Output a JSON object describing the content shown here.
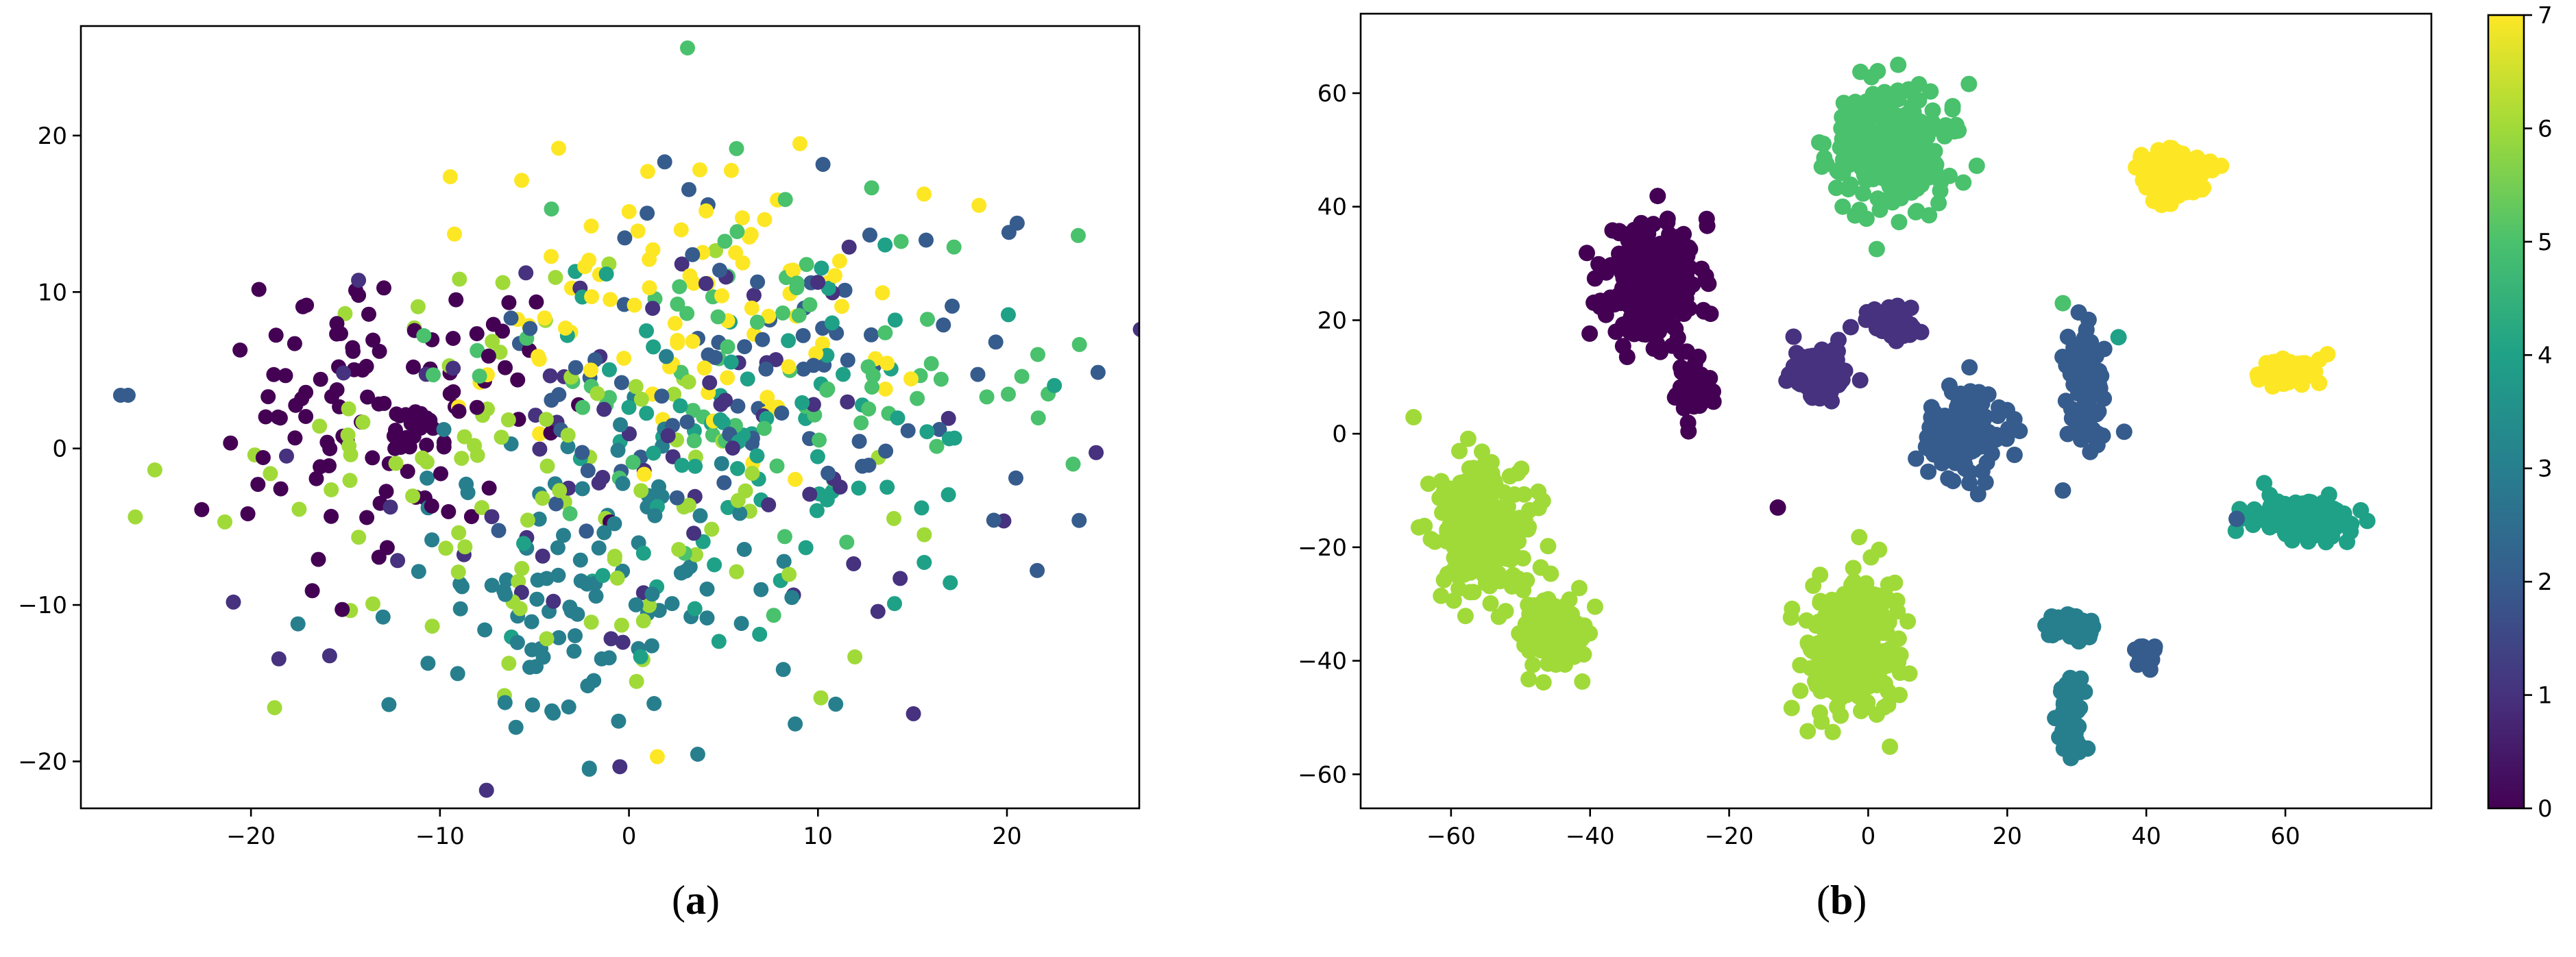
{
  "captions": {
    "a": "a",
    "b": "b"
  },
  "colors": {
    "viridis": [
      "#440154",
      "#46327e",
      "#365c8d",
      "#277f8e",
      "#1fa187",
      "#4ac16d",
      "#a0da39",
      "#fde725"
    ]
  },
  "chart_data": [
    {
      "type": "scatter",
      "panel": "a",
      "title": "",
      "xlabel": "",
      "ylabel": "",
      "xlim": [
        -29,
        27
      ],
      "ylim": [
        -23,
        27
      ],
      "xticks": [
        -20,
        -10,
        0,
        10,
        20
      ],
      "yticks": [
        -20,
        -10,
        0,
        10,
        20
      ],
      "grid": false,
      "clusters": [
        {
          "label": 0,
          "cx": -13,
          "cy": 2,
          "rx": 7,
          "ry": 8,
          "n": 120
        },
        {
          "label": 1,
          "cx": 0,
          "cy": 0,
          "rx": 19,
          "ry": 14,
          "n": 70
        },
        {
          "label": 2,
          "cx": 6,
          "cy": 4,
          "rx": 14,
          "ry": 11,
          "n": 80
        },
        {
          "label": 3,
          "cx": -1,
          "cy": -8,
          "rx": 10,
          "ry": 10,
          "n": 110
        },
        {
          "label": 4,
          "cx": 8,
          "cy": 0,
          "rx": 13,
          "ry": 11,
          "n": 80
        },
        {
          "label": 5,
          "cx": 8,
          "cy": 5,
          "rx": 14,
          "ry": 11,
          "n": 80
        },
        {
          "label": 6,
          "cx": -6,
          "cy": -3,
          "rx": 16,
          "ry": 12,
          "n": 100
        },
        {
          "label": 7,
          "cx": 4,
          "cy": 9,
          "rx": 13,
          "ry": 9,
          "n": 90
        }
      ],
      "outliers": [
        {
          "x": -26.5,
          "y": 3.4,
          "label": 2
        },
        {
          "x": -26.9,
          "y": 3.4,
          "label": 2
        },
        {
          "x": 3.1,
          "y": 25.6,
          "label": 5
        },
        {
          "x": 1.5,
          "y": -19.7,
          "label": 7
        },
        {
          "x": -2.1,
          "y": -20.5,
          "label": 3
        },
        {
          "x": 23.5,
          "y": -1.0,
          "label": 5
        },
        {
          "x": 21.6,
          "y": -7.8,
          "label": 2
        }
      ]
    },
    {
      "type": "scatter",
      "panel": "b",
      "title": "",
      "xlabel": "",
      "ylabel": "",
      "xlim": [
        -73,
        81
      ],
      "ylim": [
        -66,
        74
      ],
      "xticks": [
        -60,
        -40,
        -20,
        0,
        20,
        40,
        60
      ],
      "yticks": [
        -60,
        -40,
        -20,
        0,
        20,
        40,
        60
      ],
      "grid": false,
      "colorbar": {
        "min": 0,
        "max": 7,
        "ticks": [
          0,
          1,
          2,
          3,
          4,
          5,
          6,
          7
        ]
      },
      "clusters": [
        {
          "label": 0,
          "cx": -31,
          "cy": 27,
          "rx": 8,
          "ry": 13,
          "n": 260
        },
        {
          "label": 0,
          "cx": -25,
          "cy": 8,
          "rx": 3,
          "ry": 6,
          "n": 40
        },
        {
          "label": 1,
          "cx": -7,
          "cy": 11,
          "rx": 5,
          "ry": 5,
          "n": 110
        },
        {
          "label": 1,
          "cx": 3,
          "cy": 20,
          "rx": 5,
          "ry": 4,
          "n": 50
        },
        {
          "label": 2,
          "cx": 14,
          "cy": 0,
          "rx": 6,
          "ry": 9,
          "n": 140
        },
        {
          "label": 2,
          "cx": 31,
          "cy": 9,
          "rx": 3,
          "ry": 13,
          "n": 100
        },
        {
          "label": 2,
          "cx": 40,
          "cy": -39,
          "rx": 2,
          "ry": 2,
          "n": 25
        },
        {
          "label": 3,
          "cx": 29,
          "cy": -34,
          "rx": 4,
          "ry": 3,
          "n": 50
        },
        {
          "label": 3,
          "cx": 29,
          "cy": -50,
          "rx": 2,
          "ry": 8,
          "n": 60
        },
        {
          "label": 4,
          "cx": 63,
          "cy": -15,
          "rx": 9,
          "ry": 4,
          "n": 160
        },
        {
          "label": 5,
          "cx": 3,
          "cy": 50,
          "rx": 10,
          "ry": 13,
          "n": 250
        },
        {
          "label": 6,
          "cx": -55,
          "cy": -17,
          "rx": 8,
          "ry": 14,
          "n": 260
        },
        {
          "label": 6,
          "cx": -46,
          "cy": -35,
          "rx": 6,
          "ry": 7,
          "n": 120
        },
        {
          "label": 6,
          "cx": -2,
          "cy": -38,
          "rx": 8,
          "ry": 14,
          "n": 320
        },
        {
          "label": 7,
          "cx": 44,
          "cy": 46,
          "rx": 5,
          "ry": 5,
          "n": 150
        },
        {
          "label": 7,
          "cx": 60,
          "cy": 11,
          "rx": 5,
          "ry": 2.5,
          "n": 90
        }
      ],
      "outliers": [
        {
          "x": -13,
          "y": -13,
          "label": 0
        },
        {
          "x": 28,
          "y": 23,
          "label": 5
        },
        {
          "x": 36,
          "y": 17,
          "label": 4
        },
        {
          "x": 28,
          "y": -10,
          "label": 2
        },
        {
          "x": 53,
          "y": -15,
          "label": 2
        }
      ]
    }
  ]
}
